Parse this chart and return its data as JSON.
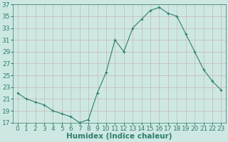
{
  "x": [
    0,
    1,
    2,
    3,
    4,
    5,
    6,
    7,
    8,
    9,
    10,
    11,
    12,
    13,
    14,
    15,
    16,
    17,
    18,
    19,
    20,
    21,
    22,
    23
  ],
  "y": [
    22,
    21,
    20.5,
    20,
    19,
    18.5,
    18,
    17,
    17.5,
    22,
    25.5,
    31,
    29,
    33,
    34.5,
    36,
    36.5,
    35.5,
    35,
    32,
    29,
    26,
    24,
    22.5
  ],
  "line_color": "#2e7d6e",
  "marker": "P",
  "marker_size": 2.5,
  "bg_color": "#cde8e2",
  "grid_color": "#b8d4ce",
  "xlabel": "Humidex (Indice chaleur)",
  "ylim": [
    17,
    37
  ],
  "xlim": [
    -0.5,
    23.5
  ],
  "yticks": [
    17,
    19,
    21,
    23,
    25,
    27,
    29,
    31,
    33,
    35,
    37
  ],
  "xticks": [
    0,
    1,
    2,
    3,
    4,
    5,
    6,
    7,
    8,
    9,
    10,
    11,
    12,
    13,
    14,
    15,
    16,
    17,
    18,
    19,
    20,
    21,
    22,
    23
  ],
  "tick_fontsize": 6.5,
  "xlabel_fontsize": 7.5
}
